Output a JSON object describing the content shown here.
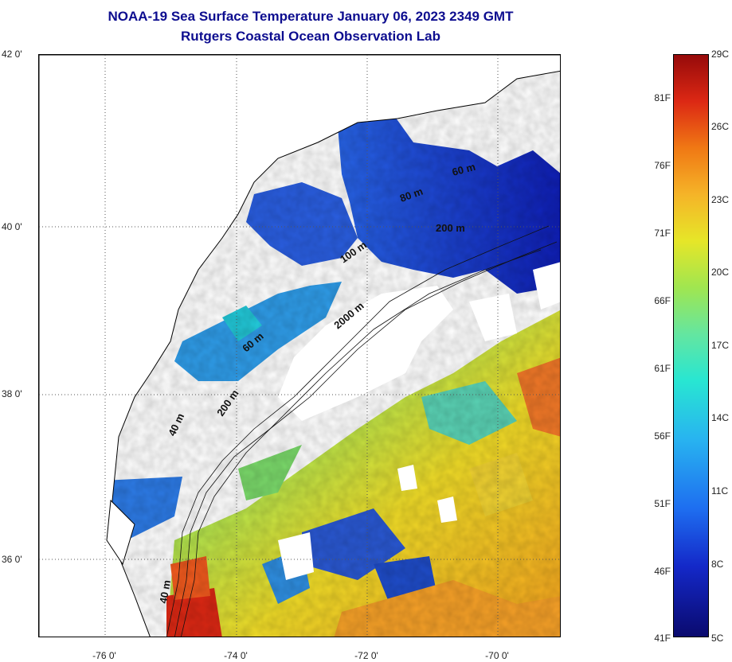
{
  "header": {
    "title_line1": "NOAA-19 Sea Surface Temperature January 06, 2023 2349 GMT",
    "title_line2": "Rutgers Coastal Ocean Observation Lab"
  },
  "map": {
    "lat_labels": [
      "42 0'",
      "40 0'",
      "38 0'",
      "36 0'"
    ],
    "lon_labels": [
      "-76 0'",
      "-74 0'",
      "-72 0'",
      "-70 0'"
    ],
    "contour_labels": [
      "60 m",
      "80 m",
      "200 m",
      "100 m",
      "2000 m",
      "60 m",
      "200 m",
      "40 m",
      "40 m"
    ],
    "colors": {
      "coastline": "#000000",
      "gridline": "#555555",
      "water_cold": "#1e3cd2",
      "water_warm": "#f08c1e"
    }
  },
  "colorbar": {
    "fahrenheit_labels": [
      "81F",
      "76F",
      "71F",
      "66F",
      "61F",
      "56F",
      "51F",
      "46F",
      "41F"
    ],
    "celsius_labels": [
      "29C",
      "26C",
      "23C",
      "20C",
      "17C",
      "14C",
      "11C",
      "8C",
      "5C"
    ],
    "range_c": [
      5,
      29
    ],
    "range_f": [
      41,
      84
    ]
  }
}
